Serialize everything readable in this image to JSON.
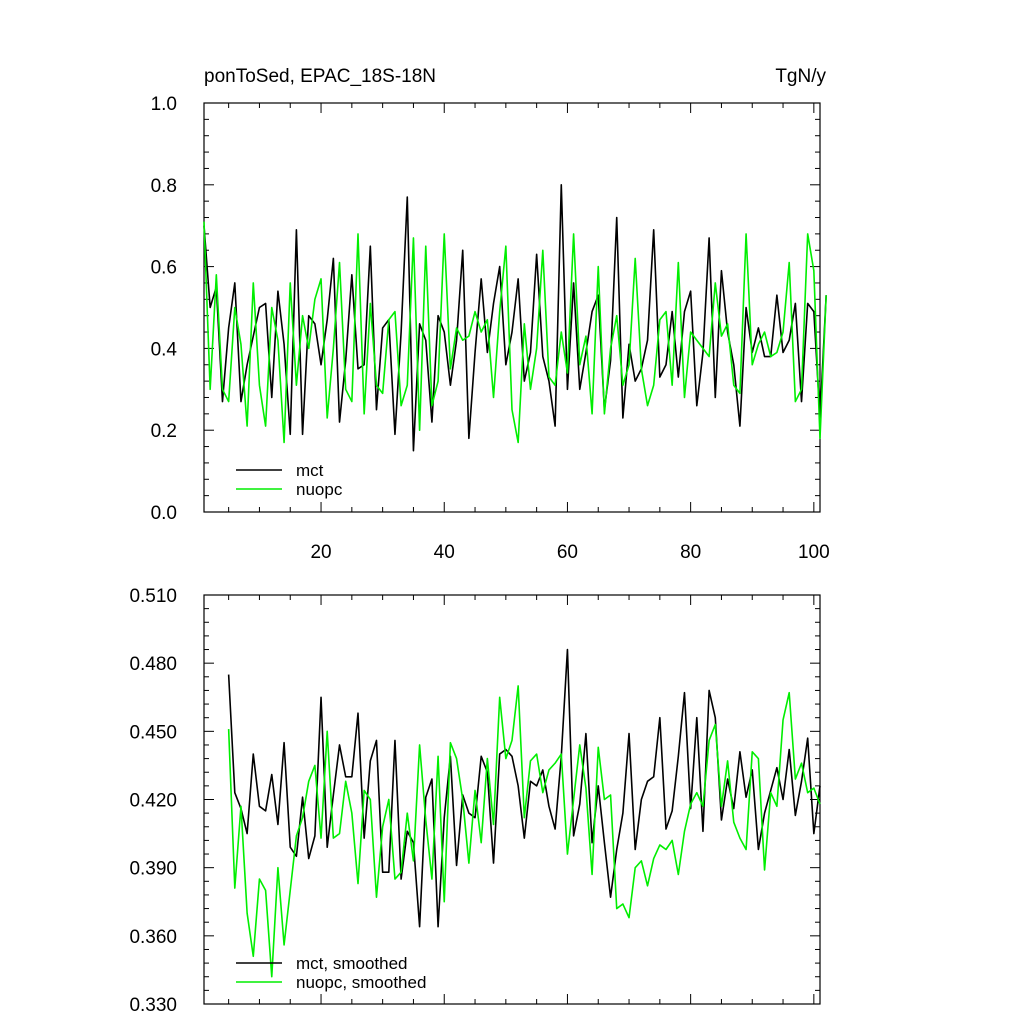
{
  "figure": {
    "title_left": "ponToSed, EPAC_18S-18N",
    "title_right": "TgN/y"
  },
  "colors": {
    "mct": "#000000",
    "nuopc": "#00ee00",
    "axes": "#000000",
    "background": "#ffffff"
  },
  "chart_data": [
    {
      "type": "line",
      "xlim": [
        1,
        101
      ],
      "ylim": [
        0.0,
        1.0
      ],
      "xticks": [
        20,
        40,
        60,
        80,
        100
      ],
      "xtick_labels": [
        "20",
        "40",
        "60",
        "80",
        "100"
      ],
      "yticks": [
        0.0,
        0.2,
        0.4,
        0.6,
        0.8,
        1.0
      ],
      "ytick_labels": [
        "0.0",
        "0.2",
        "0.4",
        "0.6",
        "0.8",
        "1.0"
      ],
      "legend_position": "lower-left",
      "grid": false,
      "x_start": 1,
      "series": [
        {
          "name": "mct",
          "color": "#000000",
          "values": [
            0.7,
            0.5,
            0.55,
            0.27,
            0.45,
            0.56,
            0.27,
            0.36,
            0.43,
            0.5,
            0.51,
            0.28,
            0.54,
            0.41,
            0.19,
            0.69,
            0.19,
            0.48,
            0.46,
            0.36,
            0.47,
            0.62,
            0.22,
            0.37,
            0.58,
            0.35,
            0.36,
            0.65,
            0.25,
            0.45,
            0.47,
            0.19,
            0.44,
            0.77,
            0.15,
            0.46,
            0.42,
            0.22,
            0.48,
            0.44,
            0.31,
            0.42,
            0.64,
            0.18,
            0.39,
            0.57,
            0.39,
            0.51,
            0.6,
            0.36,
            0.44,
            0.57,
            0.32,
            0.39,
            0.63,
            0.38,
            0.32,
            0.21,
            0.8,
            0.3,
            0.56,
            0.3,
            0.39,
            0.49,
            0.53,
            0.25,
            0.37,
            0.72,
            0.23,
            0.41,
            0.32,
            0.35,
            0.42,
            0.69,
            0.33,
            0.36,
            0.49,
            0.33,
            0.49,
            0.54,
            0.26,
            0.39,
            0.67,
            0.28,
            0.59,
            0.44,
            0.36,
            0.21,
            0.5,
            0.39,
            0.45,
            0.38,
            0.38,
            0.53,
            0.39,
            0.42,
            0.51,
            0.27,
            0.51,
            0.49,
            0.23,
            0.53
          ]
        },
        {
          "name": "nuopc",
          "color": "#00ee00",
          "values": [
            0.71,
            0.3,
            0.58,
            0.3,
            0.27,
            0.5,
            0.41,
            0.21,
            0.56,
            0.31,
            0.21,
            0.5,
            0.42,
            0.17,
            0.56,
            0.31,
            0.48,
            0.4,
            0.52,
            0.57,
            0.23,
            0.4,
            0.61,
            0.3,
            0.27,
            0.68,
            0.24,
            0.51,
            0.31,
            0.29,
            0.47,
            0.49,
            0.26,
            0.31,
            0.67,
            0.2,
            0.65,
            0.26,
            0.32,
            0.68,
            0.35,
            0.45,
            0.42,
            0.43,
            0.49,
            0.44,
            0.47,
            0.28,
            0.49,
            0.65,
            0.25,
            0.17,
            0.46,
            0.3,
            0.4,
            0.64,
            0.33,
            0.31,
            0.44,
            0.34,
            0.68,
            0.36,
            0.43,
            0.24,
            0.6,
            0.24,
            0.4,
            0.48,
            0.31,
            0.36,
            0.62,
            0.35,
            0.26,
            0.31,
            0.47,
            0.49,
            0.31,
            0.61,
            0.28,
            0.44,
            0.42,
            0.4,
            0.38,
            0.56,
            0.43,
            0.46,
            0.31,
            0.29,
            0.68,
            0.36,
            0.41,
            0.44,
            0.38,
            0.39,
            0.44,
            0.61,
            0.27,
            0.3,
            0.68,
            0.59,
            0.18,
            0.53
          ]
        }
      ]
    },
    {
      "type": "line",
      "xlim": [
        1,
        101
      ],
      "ylim": [
        0.33,
        0.51
      ],
      "xticks": [
        20,
        40,
        60,
        80,
        100
      ],
      "xtick_labels": [],
      "yticks": [
        0.33,
        0.36,
        0.39,
        0.42,
        0.45,
        0.48,
        0.51
      ],
      "ytick_labels": [
        "0.330",
        "0.360",
        "0.390",
        "0.420",
        "0.450",
        "0.480",
        "0.510"
      ],
      "legend_position": "lower-left",
      "grid": false,
      "x_start": 5,
      "series": [
        {
          "name": "mct, smoothed",
          "color": "#000000",
          "values": [
            0.475,
            0.423,
            0.416,
            0.405,
            0.44,
            0.417,
            0.415,
            0.431,
            0.409,
            0.445,
            0.399,
            0.395,
            0.421,
            0.394,
            0.404,
            0.465,
            0.399,
            0.422,
            0.444,
            0.43,
            0.43,
            0.458,
            0.403,
            0.437,
            0.446,
            0.388,
            0.388,
            0.446,
            0.385,
            0.406,
            0.401,
            0.364,
            0.421,
            0.429,
            0.364,
            0.412,
            0.439,
            0.391,
            0.422,
            0.414,
            0.412,
            0.439,
            0.432,
            0.392,
            0.44,
            0.442,
            0.439,
            0.426,
            0.403,
            0.428,
            0.426,
            0.433,
            0.417,
            0.407,
            0.439,
            0.486,
            0.404,
            0.418,
            0.449,
            0.401,
            0.426,
            0.401,
            0.377,
            0.398,
            0.414,
            0.449,
            0.398,
            0.42,
            0.428,
            0.43,
            0.456,
            0.407,
            0.415,
            0.439,
            0.467,
            0.416,
            0.456,
            0.406,
            0.468,
            0.456,
            0.411,
            0.429,
            0.416,
            0.441,
            0.421,
            0.433,
            0.398,
            0.414,
            0.424,
            0.434,
            0.42,
            0.442,
            0.413,
            0.428,
            0.447,
            0.405,
            0.426
          ]
        },
        {
          "name": "nuopc, smoothed",
          "color": "#00ee00",
          "values": [
            0.451,
            0.381,
            0.417,
            0.37,
            0.351,
            0.385,
            0.38,
            0.342,
            0.39,
            0.356,
            0.38,
            0.404,
            0.412,
            0.428,
            0.435,
            0.403,
            0.45,
            0.403,
            0.405,
            0.428,
            0.414,
            0.383,
            0.424,
            0.42,
            0.377,
            0.408,
            0.42,
            0.385,
            0.388,
            0.414,
            0.393,
            0.444,
            0.411,
            0.385,
            0.439,
            0.375,
            0.445,
            0.438,
            0.42,
            0.392,
            0.424,
            0.401,
            0.438,
            0.409,
            0.465,
            0.438,
            0.446,
            0.47,
            0.412,
            0.437,
            0.44,
            0.423,
            0.433,
            0.436,
            0.44,
            0.396,
            0.42,
            0.444,
            0.425,
            0.387,
            0.443,
            0.42,
            0.422,
            0.372,
            0.374,
            0.368,
            0.39,
            0.393,
            0.382,
            0.394,
            0.4,
            0.398,
            0.402,
            0.387,
            0.406,
            0.418,
            0.423,
            0.417,
            0.446,
            0.453,
            0.417,
            0.437,
            0.41,
            0.403,
            0.398,
            0.441,
            0.438,
            0.389,
            0.423,
            0.417,
            0.455,
            0.467,
            0.429,
            0.436,
            0.423,
            0.425,
            0.418
          ]
        }
      ]
    }
  ]
}
